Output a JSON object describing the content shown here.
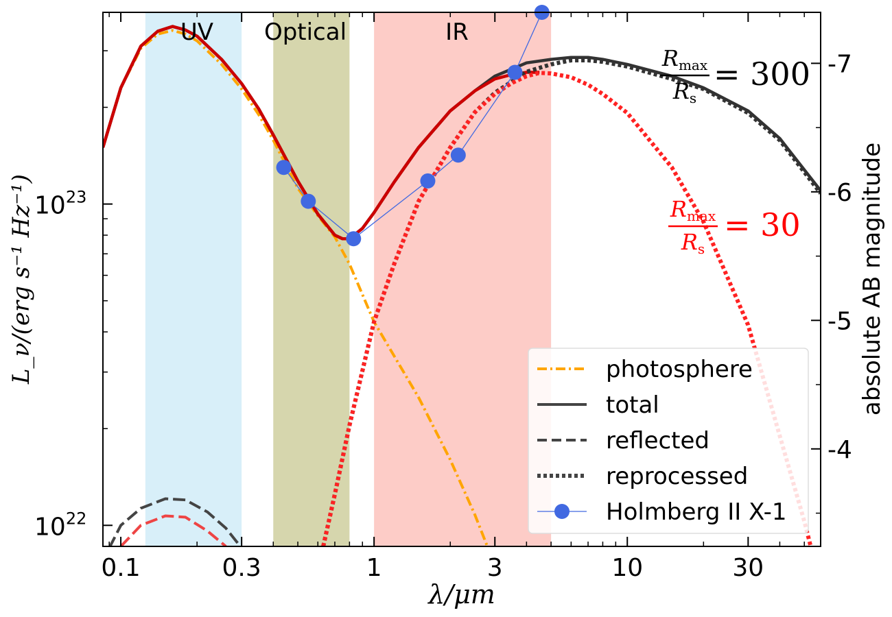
{
  "chart_data": {
    "type": "line",
    "xscale": "log",
    "yscale": "log",
    "xlim": [
      0.085,
      58
    ],
    "ylim": [
      8.6e+21,
      3.95e+23
    ],
    "xlabel": "λ/μm",
    "ylabel": "L_ν/(erg s⁻¹ Hz⁻¹)",
    "y2label": "absolute AB magnitude",
    "x_ticks": [
      {
        "value": 0.1,
        "label": "0.1"
      },
      {
        "value": 0.3,
        "label": "0.3"
      },
      {
        "value": 1,
        "label": "1"
      },
      {
        "value": 3,
        "label": "3"
      },
      {
        "value": 10,
        "label": "10"
      },
      {
        "value": 30,
        "label": "30"
      }
    ],
    "y_ticks": [
      {
        "value": 1e+22,
        "base": "10",
        "exp": "22"
      },
      {
        "value": 1e+23,
        "base": "10",
        "exp": "23"
      }
    ],
    "y2_ticks": [
      {
        "mag": -7,
        "label": "-7"
      },
      {
        "mag": -6,
        "label": "-6"
      },
      {
        "mag": -5,
        "label": "-5"
      },
      {
        "mag": -4,
        "label": "-4"
      }
    ],
    "bands": [
      {
        "name": "UV",
        "label": "UV",
        "from": 0.125,
        "to": 0.3,
        "color": "#87ceeb",
        "opacity": 0.32
      },
      {
        "name": "optical",
        "label": "Optical",
        "from": 0.4,
        "to": 0.8,
        "color": "#808000",
        "opacity": 0.32
      },
      {
        "name": "ir",
        "label": "IR",
        "from": 1.0,
        "to": 5.0,
        "color": "#fa8072",
        "opacity": 0.4
      }
    ],
    "annotations": [
      {
        "name": "rmax-300",
        "numerator": "R",
        "numerator_sub": "max",
        "denominator": "R",
        "denominator_sub": "s",
        "value": "= 300",
        "color": "#000000"
      },
      {
        "name": "rmax-30",
        "numerator": "R",
        "numerator_sub": "max",
        "denominator": "R",
        "denominator_sub": "s",
        "value": "= 30",
        "color": "#ff0000"
      }
    ],
    "series": [
      {
        "name": "photosphere",
        "label": "photosphere",
        "color": "#ffa500",
        "dash": "14,5,3,5",
        "points": [
          [
            0.085,
            1.5e+23
          ],
          [
            0.1,
            2.3e+23
          ],
          [
            0.12,
            3.05e+23
          ],
          [
            0.14,
            3.38e+23
          ],
          [
            0.16,
            3.47e+23
          ],
          [
            0.18,
            3.38e+23
          ],
          [
            0.2,
            3.22e+23
          ],
          [
            0.25,
            2.72e+23
          ],
          [
            0.3,
            2.28e+23
          ],
          [
            0.35,
            1.9e+23
          ],
          [
            0.4,
            1.58e+23
          ],
          [
            0.5,
            1.12e+23
          ],
          [
            0.6,
            9.2e+22
          ],
          [
            0.7,
            7.9e+22
          ],
          [
            0.8,
            6.5e+22
          ],
          [
            1.0,
            4.3e+22
          ],
          [
            1.5,
            2.5e+22
          ],
          [
            2.0,
            1.6e+22
          ],
          [
            2.5,
            1.08e+22
          ],
          [
            3.0,
            7.5e+21
          ]
        ]
      },
      {
        "name": "total-300",
        "label": "total",
        "color": "#333333",
        "dash": "",
        "legend": true,
        "points": [
          [
            0.085,
            1.5e+23
          ],
          [
            0.1,
            2.3e+23
          ],
          [
            0.12,
            3.1e+23
          ],
          [
            0.14,
            3.45e+23
          ],
          [
            0.16,
            3.57e+23
          ],
          [
            0.18,
            3.48e+23
          ],
          [
            0.2,
            3.33e+23
          ],
          [
            0.25,
            2.82e+23
          ],
          [
            0.3,
            2.37e+23
          ],
          [
            0.35,
            1.98e+23
          ],
          [
            0.4,
            1.64e+23
          ],
          [
            0.5,
            1.18e+23
          ],
          [
            0.6,
            9.3e+22
          ],
          [
            0.7,
            8e+22
          ],
          [
            0.75,
            7.8e+22
          ],
          [
            0.8,
            7.8e+22
          ],
          [
            0.9,
            8.4e+22
          ],
          [
            1.0,
            9.4e+22
          ],
          [
            1.2,
            1.17e+23
          ],
          [
            1.5,
            1.5e+23
          ],
          [
            2.0,
            1.95e+23
          ],
          [
            2.5,
            2.25e+23
          ],
          [
            3.0,
            2.5e+23
          ],
          [
            4.0,
            2.75e+23
          ],
          [
            5.0,
            2.82e+23
          ],
          [
            6.0,
            2.86e+23
          ],
          [
            7.0,
            2.86e+23
          ],
          [
            8.0,
            2.82e+23
          ],
          [
            10.0,
            2.72e+23
          ],
          [
            15.0,
            2.5e+23
          ],
          [
            20.0,
            2.3e+23
          ],
          [
            30.0,
            1.95e+23
          ],
          [
            40.0,
            1.6e+23
          ],
          [
            58.0,
            1.1e+23
          ]
        ]
      },
      {
        "name": "total-30",
        "color": "#cc0000",
        "dash": "",
        "points": [
          [
            0.085,
            1.5e+23
          ],
          [
            0.1,
            2.3e+23
          ],
          [
            0.12,
            3.1e+23
          ],
          [
            0.14,
            3.45e+23
          ],
          [
            0.16,
            3.57e+23
          ],
          [
            0.18,
            3.48e+23
          ],
          [
            0.2,
            3.33e+23
          ],
          [
            0.25,
            2.82e+23
          ],
          [
            0.3,
            2.37e+23
          ],
          [
            0.35,
            1.98e+23
          ],
          [
            0.4,
            1.64e+23
          ],
          [
            0.5,
            1.18e+23
          ],
          [
            0.6,
            9.3e+22
          ],
          [
            0.7,
            8e+22
          ],
          [
            0.75,
            7.8e+22
          ],
          [
            0.8,
            7.8e+22
          ],
          [
            0.9,
            8.4e+22
          ],
          [
            1.0,
            9.4e+22
          ],
          [
            1.2,
            1.17e+23
          ],
          [
            1.5,
            1.5e+23
          ],
          [
            2.0,
            1.95e+23
          ],
          [
            2.5,
            2.25e+23
          ],
          [
            3.0,
            2.45e+23
          ],
          [
            3.5,
            2.53e+23
          ],
          [
            4.0,
            2.57e+23
          ],
          [
            4.5,
            2.57e+23
          ]
        ]
      },
      {
        "name": "reflected-300",
        "label": "reflected",
        "color": "#444444",
        "dash": "18,7",
        "legend": true,
        "points": [
          [
            0.09,
            8.5e+21
          ],
          [
            0.1,
            1e+22
          ],
          [
            0.12,
            1.13e+22
          ],
          [
            0.15,
            1.21e+22
          ],
          [
            0.18,
            1.2e+22
          ],
          [
            0.22,
            1.1e+22
          ],
          [
            0.26,
            9.8e+21
          ],
          [
            0.3,
            8.5e+21
          ]
        ]
      },
      {
        "name": "reflected-30",
        "color": "#ee4444",
        "dash": "18,7",
        "points": [
          [
            0.1,
            8.6e+21
          ],
          [
            0.12,
            1e+22
          ],
          [
            0.15,
            1.07e+22
          ],
          [
            0.18,
            1.06e+22
          ],
          [
            0.22,
            9.6e+21
          ],
          [
            0.26,
            8.6e+21
          ]
        ]
      },
      {
        "name": "reprocessed-300",
        "label": "reprocessed",
        "color": "#333333",
        "dash": "5,4",
        "legend": true,
        "points": [
          [
            0.63,
            8.6e+21
          ],
          [
            0.7,
            1.25e+22
          ],
          [
            0.8,
            2.05e+22
          ],
          [
            1.0,
            4.3e+22
          ],
          [
            1.2,
            6.5e+22
          ],
          [
            1.5,
            1.02e+23
          ],
          [
            2.0,
            1.5e+23
          ],
          [
            2.5,
            1.93e+23
          ],
          [
            3.0,
            2.22e+23
          ],
          [
            4.0,
            2.58e+23
          ],
          [
            5.0,
            2.72e+23
          ],
          [
            6.0,
            2.8e+23
          ],
          [
            7.0,
            2.8e+23
          ],
          [
            8.0,
            2.77e+23
          ],
          [
            10.0,
            2.68e+23
          ],
          [
            15.0,
            2.45e+23
          ],
          [
            20.0,
            2.28e+23
          ],
          [
            30.0,
            1.92e+23
          ],
          [
            40.0,
            1.58e+23
          ],
          [
            58.0,
            1.08e+23
          ]
        ]
      },
      {
        "name": "reprocessed-30",
        "color": "#ff2222",
        "dash": "5,4",
        "points": [
          [
            0.63,
            8.6e+21
          ],
          [
            0.7,
            1.25e+22
          ],
          [
            0.8,
            2.05e+22
          ],
          [
            1.0,
            4.3e+22
          ],
          [
            1.2,
            6.5e+22
          ],
          [
            1.5,
            1.02e+23
          ],
          [
            2.0,
            1.5e+23
          ],
          [
            2.5,
            1.93e+23
          ],
          [
            3.0,
            2.2e+23
          ],
          [
            3.5,
            2.38e+23
          ],
          [
            4.0,
            2.5e+23
          ],
          [
            4.5,
            2.56e+23
          ],
          [
            5.0,
            2.55e+23
          ],
          [
            6.0,
            2.48e+23
          ],
          [
            7.0,
            2.35e+23
          ],
          [
            8.0,
            2.2e+23
          ],
          [
            10.0,
            1.92e+23
          ],
          [
            15.0,
            1.3e+23
          ],
          [
            20.0,
            8.8e+22
          ],
          [
            30.0,
            4.2e+22
          ],
          [
            40.0,
            1.9e+22
          ],
          [
            50.0,
            1.03e+22
          ],
          [
            58.0,
            6.5e+21
          ]
        ]
      },
      {
        "name": "holmberg",
        "label": "Holmberg II X-1",
        "color": "#4169e1",
        "marker": true,
        "legend": true,
        "points": [
          [
            0.44,
            1.3e+23
          ],
          [
            0.55,
            1.02e+23
          ],
          [
            0.83,
            7.8e+22
          ],
          [
            1.63,
            1.18e+23
          ],
          [
            2.15,
            1.42e+23
          ],
          [
            3.6,
            2.57e+23
          ],
          [
            4.6,
            3.95e+23
          ]
        ]
      }
    ],
    "legend": [
      {
        "name": "photosphere",
        "label": "photosphere"
      },
      {
        "name": "total",
        "label": "total"
      },
      {
        "name": "reflected",
        "label": "reflected"
      },
      {
        "name": "reprocessed",
        "label": "reprocessed"
      },
      {
        "name": "holmberg",
        "label": "Holmberg II X-1"
      }
    ],
    "legend_position": "lower-right"
  }
}
